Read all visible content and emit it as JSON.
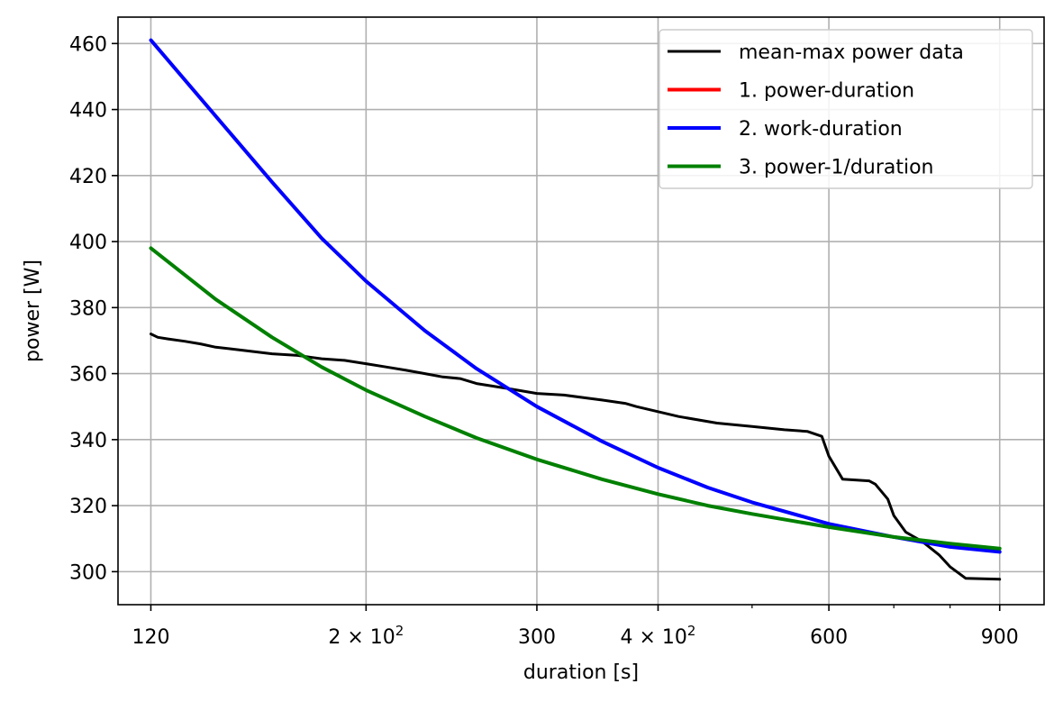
{
  "chart_data": {
    "type": "line",
    "xlabel": "duration [s]",
    "ylabel": "power [W]",
    "xscale": "log",
    "xlim": [
      111,
      1000
    ],
    "ylim": [
      290,
      468
    ],
    "grid": true,
    "legend_position": "top-right",
    "x_ticks": [
      {
        "value": 120,
        "label": "120",
        "sup": ""
      },
      {
        "value": 200,
        "label": "2 × 10",
        "sup": "2"
      },
      {
        "value": 300,
        "label": "300",
        "sup": ""
      },
      {
        "value": 400,
        "label": "4 × 10",
        "sup": "2"
      },
      {
        "value": 600,
        "label": "600",
        "sup": ""
      },
      {
        "value": 900,
        "label": "900",
        "sup": ""
      }
    ],
    "x_minor_ticks": [
      500,
      700,
      800
    ],
    "y_ticks": [
      300,
      320,
      340,
      360,
      380,
      400,
      420,
      440,
      460
    ],
    "series": [
      {
        "name": "mean-max power data",
        "color": "#000000",
        "width": 3,
        "x": [
          120,
          122,
          125,
          130,
          135,
          140,
          145,
          150,
          160,
          170,
          175,
          180,
          190,
          200,
          210,
          220,
          230,
          240,
          250,
          260,
          280,
          300,
          320,
          340,
          350,
          370,
          380,
          420,
          460,
          500,
          540,
          570,
          590,
          600,
          620,
          660,
          670,
          690,
          700,
          720,
          750,
          780,
          800,
          830,
          900
        ],
        "y": [
          372,
          371,
          370.5,
          369.8,
          369,
          368,
          367.5,
          367,
          366,
          365.5,
          365,
          364.5,
          364,
          363,
          362,
          361,
          360,
          359,
          358.5,
          357,
          355.5,
          354,
          353.5,
          352.5,
          352,
          351,
          350,
          347,
          345,
          344,
          343,
          342.5,
          341,
          335,
          328,
          327.5,
          326.5,
          322,
          317,
          312,
          309,
          305,
          301.5,
          298,
          297.7
        ]
      },
      {
        "name": "1. power-duration",
        "color": "#ff0000",
        "width": 4,
        "x": [],
        "y": []
      },
      {
        "name": "2. work-duration",
        "color": "#0000ff",
        "width": 4,
        "x": [
          120,
          140,
          160,
          180,
          200,
          230,
          260,
          300,
          350,
          400,
          450,
          500,
          600,
          700,
          800,
          900
        ],
        "y": [
          461,
          438,
          418,
          401,
          388,
          373,
          361.5,
          350,
          339.5,
          331.5,
          325.5,
          321,
          314.5,
          310.5,
          307.5,
          306
        ]
      },
      {
        "name": "3. power-1/duration",
        "color": "#008000",
        "width": 4,
        "x": [
          120,
          140,
          160,
          180,
          200,
          230,
          260,
          300,
          350,
          400,
          450,
          500,
          600,
          700,
          800,
          900
        ],
        "y": [
          398,
          382.5,
          371,
          362,
          355,
          347,
          340.5,
          334,
          328,
          323.5,
          320,
          317.5,
          313.5,
          310.5,
          308.5,
          307
        ]
      }
    ]
  }
}
